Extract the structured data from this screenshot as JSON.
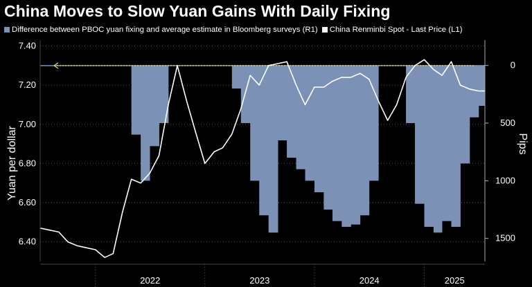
{
  "title": "China Moves to Slow Yuan Gains With Daily Fixing",
  "colors": {
    "background": "#000000",
    "bar_fill": "#7b91b5",
    "line": "#ffffff",
    "guide_line": "#e8e26a",
    "grid": "#5a5a5a",
    "text": "#ffffff"
  },
  "chart_data": {
    "type": "area",
    "title": "China Moves to Slow Yuan Gains With Daily Fixing",
    "legend_placement": "top",
    "x_range": [
      "2021-07-01",
      "2025-07-22"
    ],
    "x_tick_labels": [
      "2022",
      "2023",
      "2024",
      "2025"
    ],
    "y_left": {
      "label": "Yuan per dollar",
      "range": [
        6.3,
        7.43
      ],
      "ticks": [
        "6.40",
        "6.60",
        "6.80",
        "7.00",
        "7.20",
        "7.40"
      ]
    },
    "y_right": {
      "label": "Pips",
      "range": [
        -1700,
        220
      ],
      "inverted_display": true,
      "ticks": [
        0,
        500,
        1000,
        1500
      ],
      "tick_labels": [
        "0",
        "500",
        "1000",
        "1500"
      ]
    },
    "reference_line": {
      "axis": "left",
      "value": 7.3
    },
    "series": [
      {
        "name": "Difference between PBOC yuan fixing and average estimate in Bloomberg surveys (R1)",
        "kind": "bar",
        "axis": "right",
        "color": "#7b91b5",
        "x": [
          "2021-07-01",
          "2021-08-01",
          "2021-09-01",
          "2021-10-01",
          "2021-11-01",
          "2021-12-01",
          "2022-01-01",
          "2022-02-01",
          "2022-03-01",
          "2022-04-01",
          "2022-05-01",
          "2022-06-01",
          "2022-07-01",
          "2022-08-01",
          "2022-09-01",
          "2022-10-01",
          "2022-11-01",
          "2022-12-01",
          "2023-01-01",
          "2023-02-01",
          "2023-03-01",
          "2023-04-01",
          "2023-05-01",
          "2023-06-01",
          "2023-07-01",
          "2023-08-01",
          "2023-09-01",
          "2023-10-01",
          "2023-11-01",
          "2023-12-01",
          "2024-01-01",
          "2024-02-01",
          "2024-03-01",
          "2024-04-01",
          "2024-05-01",
          "2024-06-01",
          "2024-07-01",
          "2024-08-01",
          "2024-09-01",
          "2024-10-01",
          "2024-11-01",
          "2024-12-01",
          "2025-01-01",
          "2025-02-01",
          "2025-03-01",
          "2025-04-01",
          "2025-05-01",
          "2025-06-01",
          "2025-07-01",
          "2025-07-22"
        ],
        "values": [
          0,
          0,
          0,
          0,
          0,
          0,
          0,
          0,
          0,
          0,
          -600,
          -1000,
          -700,
          -500,
          0,
          0,
          0,
          0,
          0,
          0,
          0,
          -200,
          -500,
          -1000,
          -1300,
          -1450,
          -650,
          -800,
          -900,
          -1000,
          -1100,
          -1250,
          -1350,
          -1400,
          -1380,
          -1300,
          -1000,
          0,
          0,
          0,
          -500,
          -1200,
          -1400,
          -1450,
          -1350,
          -1400,
          -850,
          -450,
          -350,
          0
        ]
      },
      {
        "name": "China Renminbi Spot - Last Price (L1)",
        "kind": "line",
        "axis": "left",
        "color": "#ffffff",
        "x": [
          "2021-07-01",
          "2021-08-01",
          "2021-09-01",
          "2021-10-01",
          "2021-11-01",
          "2021-12-01",
          "2022-01-01",
          "2022-02-01",
          "2022-03-01",
          "2022-04-01",
          "2022-05-01",
          "2022-06-01",
          "2022-07-01",
          "2022-08-01",
          "2022-09-01",
          "2022-10-01",
          "2022-11-01",
          "2022-12-01",
          "2023-01-01",
          "2023-02-01",
          "2023-03-01",
          "2023-04-01",
          "2023-05-01",
          "2023-06-01",
          "2023-07-01",
          "2023-08-01",
          "2023-09-01",
          "2023-10-01",
          "2023-11-01",
          "2023-12-01",
          "2024-01-01",
          "2024-02-01",
          "2024-03-01",
          "2024-04-01",
          "2024-05-01",
          "2024-06-01",
          "2024-07-01",
          "2024-08-01",
          "2024-09-01",
          "2024-10-01",
          "2024-11-01",
          "2024-12-01",
          "2025-01-01",
          "2025-02-01",
          "2025-03-01",
          "2025-04-01",
          "2025-05-01",
          "2025-06-01",
          "2025-07-01",
          "2025-07-22"
        ],
        "values": [
          6.47,
          6.46,
          6.45,
          6.4,
          6.38,
          6.37,
          6.36,
          6.32,
          6.34,
          6.55,
          6.72,
          6.7,
          6.75,
          6.84,
          7.1,
          7.3,
          7.12,
          6.96,
          6.8,
          6.86,
          6.88,
          6.95,
          7.08,
          7.25,
          7.2,
          7.3,
          7.31,
          7.32,
          7.2,
          7.1,
          7.19,
          7.19,
          7.22,
          7.24,
          7.24,
          7.26,
          7.23,
          7.12,
          7.02,
          7.1,
          7.24,
          7.3,
          7.33,
          7.28,
          7.25,
          7.32,
          7.2,
          7.18,
          7.17,
          7.17
        ]
      }
    ]
  }
}
